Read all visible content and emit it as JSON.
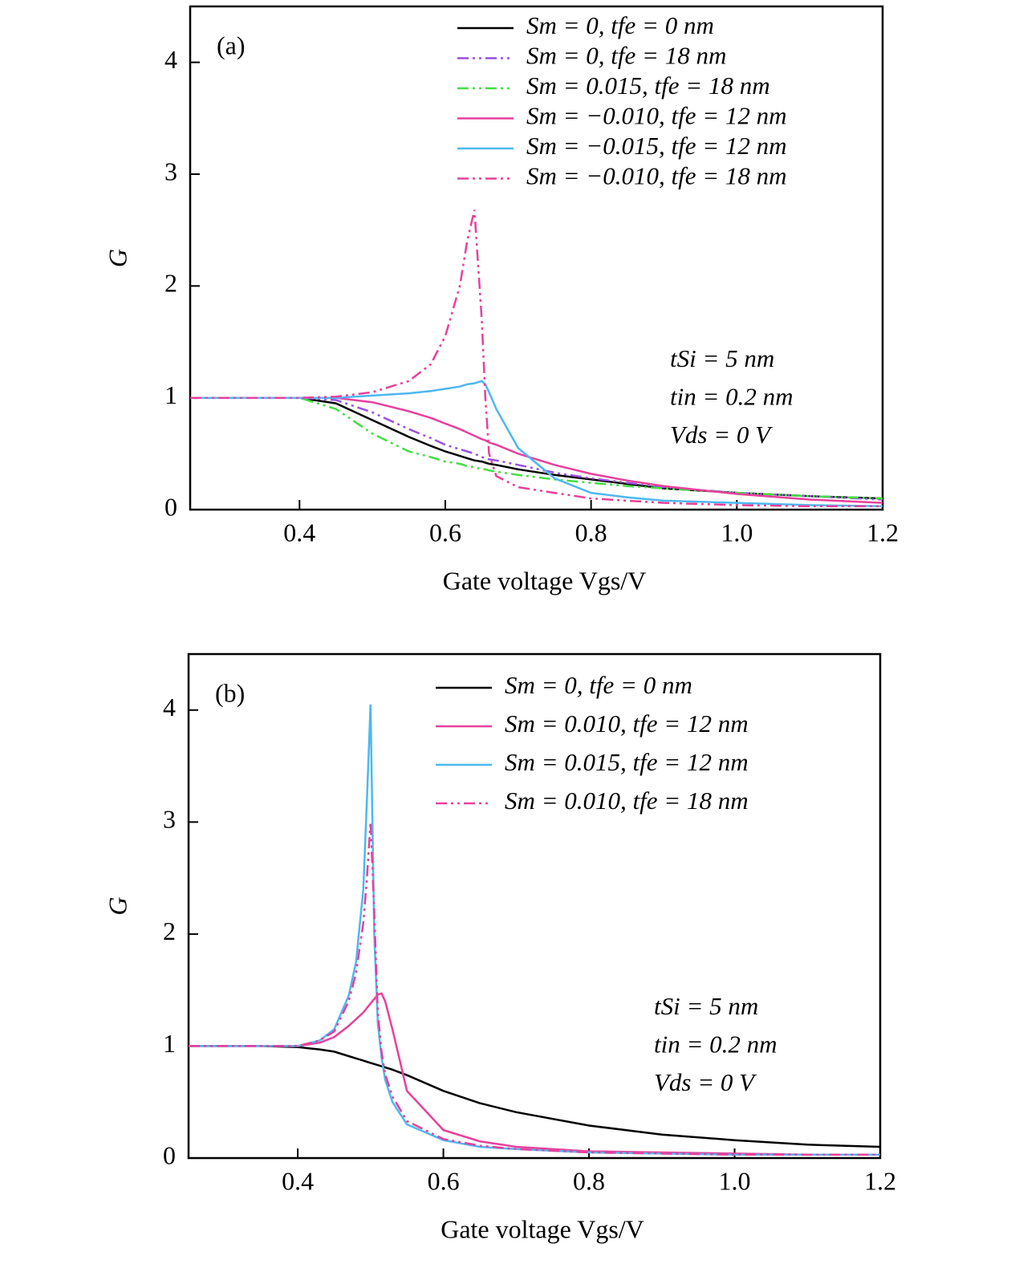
{
  "chart_data": [
    {
      "type": "line",
      "panel_label": "(a)",
      "x_label": "Gate voltage Vgs/V",
      "y_label": "G",
      "xlim": [
        0.25,
        1.2
      ],
      "ylim": [
        0,
        4.5
      ],
      "xticks": [
        0.4,
        0.6,
        0.8,
        {
          "value": 1,
          "label": "1.0"
        },
        1.2
      ],
      "yticks": [
        0,
        1,
        2,
        3,
        4
      ],
      "legend": "upper right",
      "annotations": [
        "tSi = 5 nm",
        "tin = 0.2 nm",
        "Vds = 0 V"
      ],
      "x": [
        0.25,
        0.3,
        0.35,
        0.4,
        0.45,
        0.5,
        0.55,
        0.58,
        0.6,
        0.62,
        0.63,
        0.64,
        0.65,
        0.655,
        0.66,
        0.67,
        0.7,
        0.75,
        0.8,
        0.85,
        0.9,
        1.0,
        1.1,
        1.2
      ],
      "series": [
        {
          "name": "Sm = 0, tfe = 0 nm",
          "color": "#000000",
          "dash": "solid",
          "values": [
            1,
            1,
            1,
            1,
            0.95,
            0.8,
            0.65,
            0.57,
            0.52,
            0.48,
            0.46,
            0.44,
            0.43,
            0.42,
            0.41,
            0.4,
            0.36,
            0.31,
            0.27,
            0.23,
            0.19,
            0.15,
            0.12,
            0.1
          ]
        },
        {
          "name": "Sm = 0, tfe = 18 nm",
          "color": "#9b4fe0",
          "dash": "dash-dot-dot",
          "values": [
            1,
            1,
            1,
            1,
            0.98,
            0.87,
            0.72,
            0.64,
            0.58,
            0.54,
            0.52,
            0.5,
            0.47,
            0.46,
            0.45,
            0.44,
            0.4,
            0.33,
            0.28,
            0.24,
            0.2,
            0.15,
            0.12,
            0.09
          ]
        },
        {
          "name": "Sm = 0.015, tfe = 18 nm",
          "color": "#44dd44",
          "dash": "dash-dot-dot",
          "values": [
            1,
            1,
            1,
            1,
            0.9,
            0.68,
            0.52,
            0.47,
            0.43,
            0.41,
            0.39,
            0.38,
            0.36,
            0.36,
            0.35,
            0.34,
            0.31,
            0.27,
            0.24,
            0.21,
            0.19,
            0.15,
            0.12,
            0.1
          ]
        },
        {
          "name": "Sm = −0.010, tfe = 12 nm",
          "color": "#e8409c",
          "dash": "solid",
          "values": [
            1,
            1,
            1,
            1,
            1,
            0.96,
            0.88,
            0.82,
            0.77,
            0.72,
            0.69,
            0.66,
            0.63,
            0.62,
            0.6,
            0.58,
            0.5,
            0.4,
            0.32,
            0.26,
            0.21,
            0.14,
            0.09,
            0.06
          ]
        },
        {
          "name": "Sm = −0.015, tfe = 12 nm",
          "color": "#4db8f0",
          "dash": "solid",
          "values": [
            1,
            1,
            1,
            1,
            1,
            1.02,
            1.04,
            1.06,
            1.08,
            1.1,
            1.12,
            1.13,
            1.15,
            1.12,
            1.05,
            0.9,
            0.55,
            0.28,
            0.15,
            0.11,
            0.08,
            0.06,
            0.04,
            0.03
          ]
        },
        {
          "name": "Sm = −0.010, tfe = 18 nm",
          "color": "#e8409c",
          "dash": "dash-dot-dot",
          "values": [
            1,
            1,
            1,
            1,
            1.01,
            1.05,
            1.15,
            1.3,
            1.55,
            2.0,
            2.4,
            2.68,
            1.7,
            1.0,
            0.5,
            0.3,
            0.2,
            0.15,
            0.1,
            0.08,
            0.06,
            0.04,
            0.03,
            0.03
          ]
        }
      ]
    },
    {
      "type": "line",
      "panel_label": "(b)",
      "x_label": "Gate voltage Vgs/V",
      "y_label": "G",
      "xlim": [
        0.25,
        1.2
      ],
      "ylim": [
        0,
        4.5
      ],
      "xticks": [
        0.4,
        0.6,
        0.8,
        {
          "value": 1,
          "label": "1.0"
        },
        1.2
      ],
      "yticks": [
        0,
        1,
        2,
        3,
        4
      ],
      "legend": "upper right",
      "annotations": [
        "tSi = 5 nm",
        "tin = 0.2 nm",
        "Vds = 0 V"
      ],
      "x": [
        0.25,
        0.3,
        0.35,
        0.4,
        0.43,
        0.45,
        0.47,
        0.48,
        0.49,
        0.495,
        0.5,
        0.505,
        0.51,
        0.515,
        0.52,
        0.53,
        0.55,
        0.6,
        0.65,
        0.7,
        0.8,
        0.9,
        1.0,
        1.1,
        1.2
      ],
      "series": [
        {
          "name": "Sm = 0, tfe = 0 nm",
          "color": "#000000",
          "dash": "solid",
          "values": [
            1,
            1,
            1,
            0.99,
            0.97,
            0.95,
            0.91,
            0.89,
            0.87,
            0.86,
            0.85,
            0.84,
            0.83,
            0.82,
            0.81,
            0.79,
            0.74,
            0.6,
            0.49,
            0.41,
            0.29,
            0.21,
            0.16,
            0.12,
            0.1
          ]
        },
        {
          "name": "Sm = 0.010, tfe = 12 nm",
          "color": "#e8409c",
          "dash": "solid",
          "values": [
            1,
            1,
            1,
            1,
            1.03,
            1.08,
            1.18,
            1.24,
            1.3,
            1.34,
            1.38,
            1.42,
            1.46,
            1.47,
            1.4,
            1.15,
            0.6,
            0.25,
            0.15,
            0.1,
            0.06,
            0.05,
            0.04,
            0.03,
            0.03
          ]
        },
        {
          "name": "Sm = 0.015, tfe = 12 nm",
          "color": "#4db8f0",
          "dash": "solid",
          "values": [
            1,
            1,
            1,
            1,
            1.05,
            1.15,
            1.45,
            1.75,
            2.4,
            3.2,
            4.05,
            2.0,
            1.2,
            0.9,
            0.7,
            0.5,
            0.3,
            0.16,
            0.1,
            0.08,
            0.05,
            0.04,
            0.03,
            0.03,
            0.03
          ]
        },
        {
          "name": "Sm = 0.010, tfe = 18 nm",
          "color": "#e8409c",
          "dash": "dash-dot-dot",
          "values": [
            1,
            1,
            1,
            1,
            1.05,
            1.13,
            1.4,
            1.65,
            2.1,
            2.5,
            3.0,
            2.2,
            1.3,
            0.95,
            0.75,
            0.55,
            0.33,
            0.17,
            0.11,
            0.08,
            0.05,
            0.04,
            0.03,
            0.03,
            0.03
          ]
        }
      ]
    }
  ]
}
